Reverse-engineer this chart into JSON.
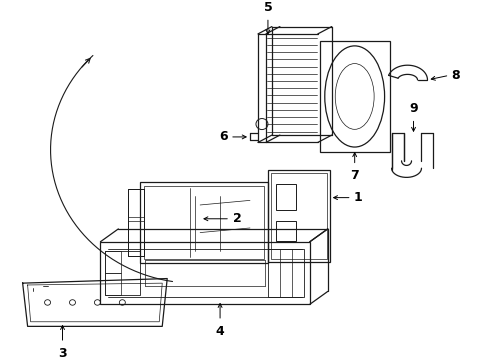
{
  "bg_color": "#ffffff",
  "line_color": "#1a1a1a",
  "label_color": "#000000",
  "label_fontsize": 9,
  "figsize": [
    4.9,
    3.6
  ],
  "dpi": 100
}
